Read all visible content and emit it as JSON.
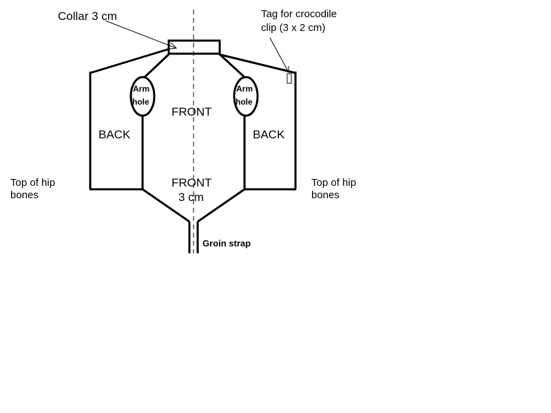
{
  "labels": {
    "collar": "Collar 3 cm",
    "tag_line1": "Tag for crocodile",
    "tag_line2": "clip (3 x 2 cm)",
    "arm_hole_left_1": "Arm",
    "arm_hole_left_2": "hole",
    "arm_hole_right_1": "Arm",
    "arm_hole_right_2": "hole",
    "front_top": "FRONT",
    "back_left": "BACK",
    "back_right": "BACK",
    "front_bottom_1": "FRONT",
    "front_bottom_2": "3 cm",
    "hip_left_1": "Top of hip",
    "hip_left_2": "bones",
    "hip_right_1": "Top of hip",
    "hip_right_2": "bones",
    "groin": "Groin strap"
  },
  "colors": {
    "line": "#000000",
    "background": "#ffffff"
  }
}
